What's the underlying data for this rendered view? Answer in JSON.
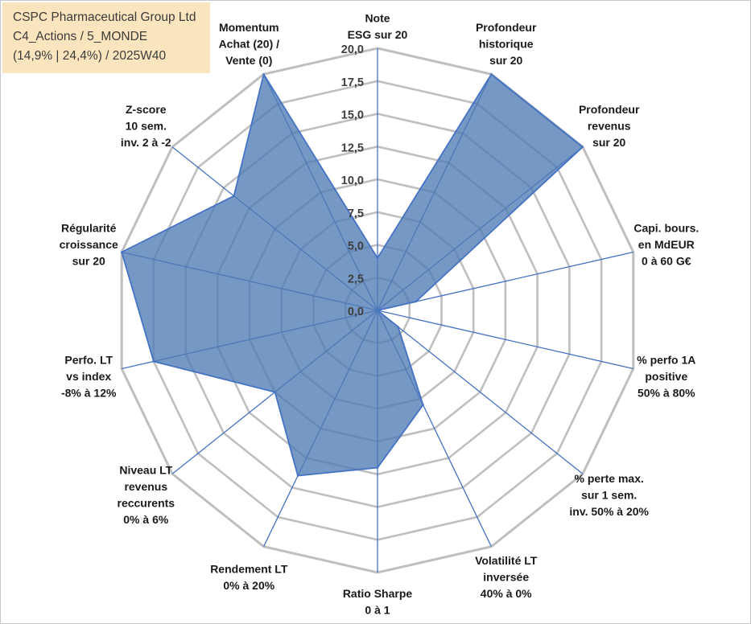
{
  "title_box": {
    "line1": "CSPC Pharmaceutical Group Ltd",
    "line2": "C4_Actions / 5_MONDE",
    "line3": "(14,9% | 24,4%) / 2025W40"
  },
  "colors": {
    "grid": "#bfbfbf",
    "spoke": "#4472c4",
    "fill": "#4f7bb5",
    "title_bg": "#fbe5bf"
  },
  "chart_data": {
    "type": "radar",
    "title": "CSPC Pharmaceutical Group Ltd",
    "rlim": [
      0,
      20
    ],
    "ticks": [
      "0,0",
      "2,5",
      "5,0",
      "7,5",
      "10,0",
      "12,5",
      "15,0",
      "17,5",
      "20,0"
    ],
    "tick_values": [
      0,
      2.5,
      5,
      7.5,
      10,
      12.5,
      15,
      17.5,
      20
    ],
    "grid": true,
    "categories": [
      {
        "label": [
          "Note",
          "ESG sur 20"
        ],
        "value": 4
      },
      {
        "label": [
          "Profondeur",
          "historique",
          "sur 20"
        ],
        "value": 20
      },
      {
        "label": [
          "Profondeur",
          "revenus",
          "sur 20"
        ],
        "value": 20
      },
      {
        "label": [
          "Capi. bours.",
          "en MdEUR",
          "0 à 60 G€"
        ],
        "value": 3
      },
      {
        "label": [
          "% perfo 1A",
          "positive",
          "50% à 80%"
        ],
        "value": 0
      },
      {
        "label": [
          "% perte max.",
          "sur 1 sem.",
          "inv. 50% à 20%"
        ],
        "value": 2
      },
      {
        "label": [
          "Volatilité LT",
          "inversée",
          "40% à 0%"
        ],
        "value": 8
      },
      {
        "label": [
          "Ratio Sharpe",
          "0 à 1"
        ],
        "value": 12
      },
      {
        "label": [
          "Rendement LT",
          "0% à 20%"
        ],
        "value": 14
      },
      {
        "label": [
          "Niveau LT",
          "revenus",
          "reccurents",
          "0% à 6%"
        ],
        "value": 10
      },
      {
        "label": [
          "Perfo. LT",
          "vs index",
          "-8% à 12%"
        ],
        "value": 17.5
      },
      {
        "label": [
          "Régularité",
          "croissance",
          "sur 20"
        ],
        "value": 20
      },
      {
        "label": [
          "Z-score",
          "10 sem.",
          "inv. 2 à -2"
        ],
        "value": 14
      },
      {
        "label": [
          "Momentum",
          "Achat (20) /",
          "Vente (0)"
        ],
        "value": 20
      }
    ]
  }
}
